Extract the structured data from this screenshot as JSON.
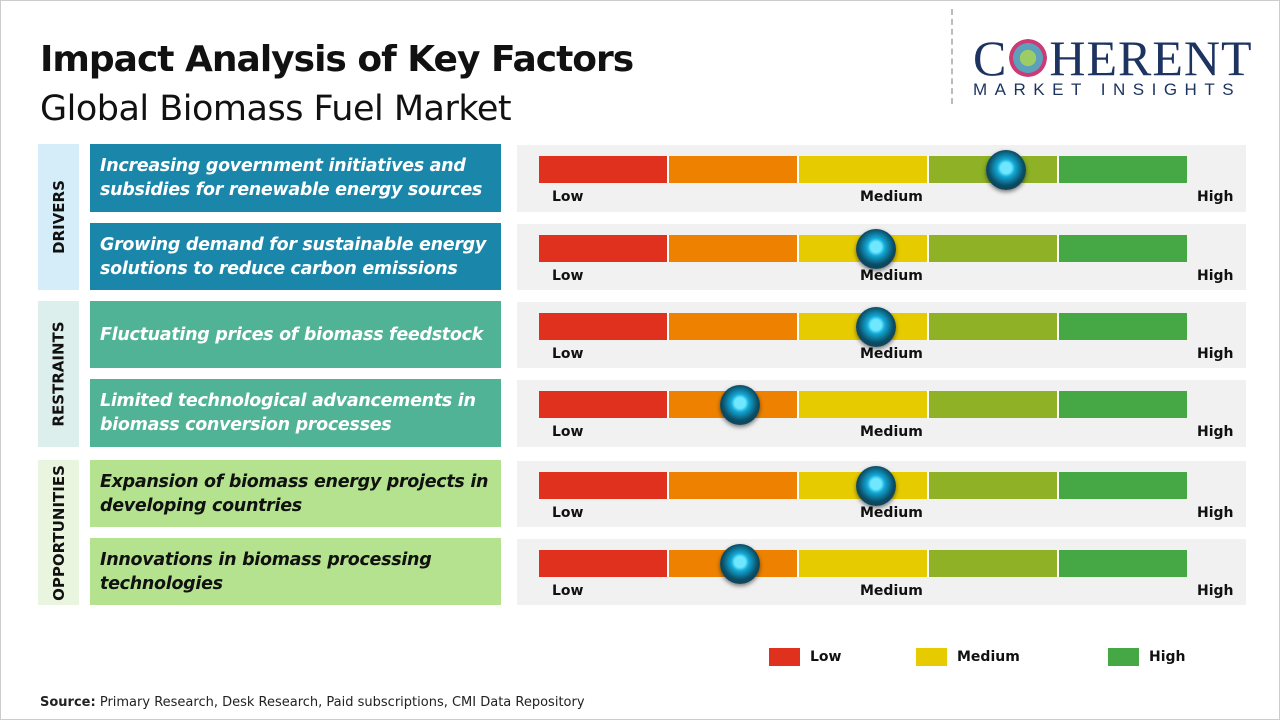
{
  "header": {
    "title": "Impact Analysis of Key Factors",
    "subtitle": "Global Biomass Fuel Market"
  },
  "logo": {
    "text_main": "COHERENT",
    "text_sub": "MARKET INSIGHTS"
  },
  "scale": {
    "low": "Low",
    "medium": "Medium",
    "high": "High",
    "segment_colors": [
      "#e0301e",
      "#ee8200",
      "#e6cb00",
      "#8eb126",
      "#46a845"
    ]
  },
  "sections": [
    {
      "label": "DRIVERS",
      "bg": "#d5edf8",
      "factor_bg": "#1a86aa",
      "text_color": "#ffffff"
    },
    {
      "label": "RESTRAINTS",
      "bg": "#dcefec",
      "factor_bg": "#50b395",
      "text_color": "#ffffff"
    },
    {
      "label": "OPPORTUNITIES",
      "bg": "#eaf5df",
      "factor_bg": "#b5e28e",
      "text_color": "#111111"
    }
  ],
  "factors": [
    {
      "section": 0,
      "text": "Increasing government initiatives and subsidies for renewable energy sources",
      "impact": 0.72
    },
    {
      "section": 0,
      "text": "Growing demand for sustainable energy solutions to reduce carbon emissions",
      "impact": 0.52
    },
    {
      "section": 1,
      "text": "Fluctuating prices of biomass feedstock",
      "impact": 0.52
    },
    {
      "section": 1,
      "text": "Limited technological advancements in biomass conversion processes",
      "impact": 0.31
    },
    {
      "section": 2,
      "text": "Expansion of biomass energy projects in developing countries",
      "impact": 0.52
    },
    {
      "section": 2,
      "text": "Innovations in biomass processing technologies",
      "impact": 0.31
    }
  ],
  "legend": [
    {
      "label": "Low",
      "color": "#e0301e"
    },
    {
      "label": "Medium",
      "color": "#e6cb00"
    },
    {
      "label": "High",
      "color": "#46a845"
    }
  ],
  "source": {
    "label": "Source:",
    "text": "Primary Research, Desk Research, Paid subscriptions, CMI Data Repository"
  }
}
